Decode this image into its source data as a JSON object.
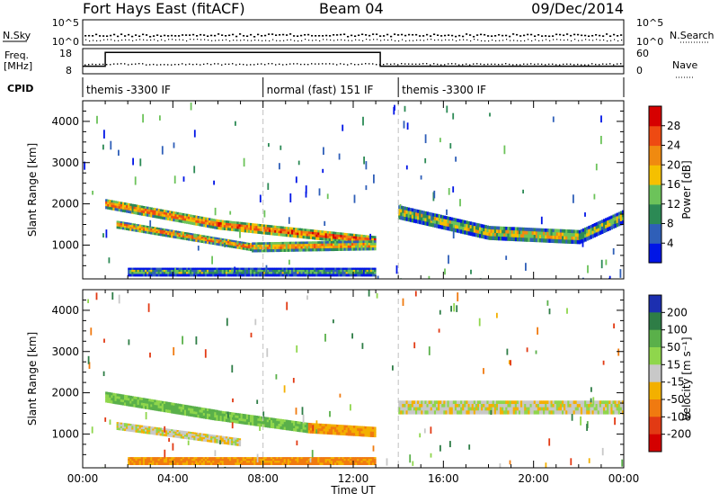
{
  "header": {
    "station": "Fort Hays East (fitACF)",
    "beam": "Beam 04",
    "date": "09/Dec/2014"
  },
  "strips": {
    "nsky_label": "N.Sky",
    "nsky_ticks": [
      "10^5",
      "10^0"
    ],
    "nsearch_label": "N.Search",
    "nsearch_ticks": [
      "10^5",
      "10^0"
    ],
    "freq_label_1": "Freq.",
    "freq_label_2": "[MHz]",
    "freq_ticks": [
      "18",
      "8"
    ],
    "nave_label": "Nave",
    "nave_ticks": [
      "60",
      "0"
    ],
    "cpid_label": "CPID",
    "cpid_segments": [
      {
        "label": "themis -3300 IF",
        "start_hour": 0.0,
        "end_hour": 8.0
      },
      {
        "label": "normal (fast) 151 IF",
        "start_hour": 8.0,
        "end_hour": 14.0
      },
      {
        "label": "themis -3300 IF",
        "start_hour": 14.0,
        "end_hour": 24.0
      }
    ],
    "freq_series": [
      {
        "hour": 0.0,
        "mhz": 11
      },
      {
        "hour": 1.0,
        "mhz": 11
      },
      {
        "hour": 1.0,
        "mhz": 16.5
      },
      {
        "hour": 13.2,
        "mhz": 16.5
      },
      {
        "hour": 13.2,
        "mhz": 11
      },
      {
        "hour": 24.0,
        "mhz": 11
      }
    ]
  },
  "chart_data": [
    {
      "type": "heatmap",
      "name": "power-panel",
      "xlabel": "",
      "ylabel": "Slant Range [km]",
      "x_ticks": [
        "00:00",
        "04:00",
        "08:00",
        "12:00",
        "16:00",
        "20:00",
        "00:00"
      ],
      "xlim_hours": [
        0,
        24
      ],
      "y_ticks": [
        "1000",
        "2000",
        "3000",
        "4000"
      ],
      "ylim_km": [
        180,
        4500
      ],
      "colorbar": {
        "label": "Power [dB]",
        "ticks": [
          "4",
          "8",
          "12",
          "16",
          "20",
          "24",
          "28"
        ],
        "range": [
          0,
          30
        ],
        "colors": [
          "#0015e6",
          "#2f5fb8",
          "#2c8a55",
          "#6cc35a",
          "#f5c000",
          "#f08a10",
          "#ee4a12",
          "#d60000"
        ]
      },
      "bands": [
        {
          "t": [
            1.0,
            6.0
          ],
          "r": [
            2000,
            1500
          ],
          "w": 230,
          "value": 22
        },
        {
          "t": [
            6.0,
            13.0
          ],
          "r": [
            1500,
            1100
          ],
          "w": 230,
          "value": 24
        },
        {
          "t": [
            1.5,
            7.5
          ],
          "r": [
            1500,
            950
          ],
          "w": 180,
          "value": 21
        },
        {
          "t": [
            7.5,
            13.0
          ],
          "r": [
            950,
            1000
          ],
          "w": 230,
          "value": 20
        },
        {
          "t": [
            2.0,
            13.0
          ],
          "r": [
            350,
            350
          ],
          "w": 200,
          "value": 11
        },
        {
          "t": [
            14.0,
            18.0
          ],
          "r": [
            1800,
            1300
          ],
          "w": 330,
          "value": 15
        },
        {
          "t": [
            18.0,
            22.0
          ],
          "r": [
            1300,
            1200
          ],
          "w": 330,
          "value": 17
        },
        {
          "t": [
            22.0,
            24.0
          ],
          "r": [
            1200,
            1700
          ],
          "w": 330,
          "value": 13
        }
      ]
    },
    {
      "type": "heatmap",
      "name": "velocity-panel",
      "xlabel": "Time UT",
      "ylabel": "Slant Range [km]",
      "x_ticks": [
        "00:00",
        "04:00",
        "08:00",
        "12:00",
        "16:00",
        "20:00",
        "00:00"
      ],
      "xlim_hours": [
        0,
        24
      ],
      "y_ticks": [
        "1000",
        "2000",
        "3000",
        "4000"
      ],
      "ylim_km": [
        180,
        4500
      ],
      "colorbar": {
        "label": "Velocity [m s⁻¹]",
        "ticks": [
          "200",
          "100",
          "50",
          "15",
          "-15",
          "-50",
          "-100",
          "-200"
        ],
        "colors": [
          "#1c2fb0",
          "#2e7d46",
          "#5ab04a",
          "#8fd64c",
          "#c8c8c8",
          "#f3b000",
          "#f07a10",
          "#e23a14",
          "#d40000"
        ]
      },
      "bands": [
        {
          "t": [
            1.0,
            6.0
          ],
          "r": [
            1900,
            1450
          ],
          "w": 250,
          "value": 60
        },
        {
          "t": [
            6.0,
            10.0
          ],
          "r": [
            1450,
            1150
          ],
          "w": 240,
          "value": 55
        },
        {
          "t": [
            10.0,
            13.0
          ],
          "r": [
            1150,
            1050
          ],
          "w": 240,
          "value": -45
        },
        {
          "t": [
            1.5,
            7.0
          ],
          "r": [
            1200,
            800
          ],
          "w": 180,
          "value": 0
        },
        {
          "t": [
            2.0,
            13.0
          ],
          "r": [
            350,
            350
          ],
          "w": 180,
          "value": -60
        },
        {
          "t": [
            14.0,
            24.0
          ],
          "r": [
            1650,
            1650
          ],
          "w": 320,
          "value": 0
        }
      ]
    }
  ]
}
